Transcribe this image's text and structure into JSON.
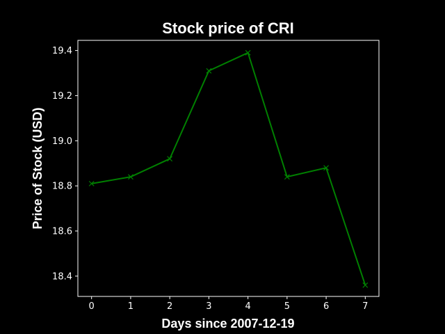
{
  "chart_data": {
    "type": "line",
    "title": "Stock price of CRI",
    "xlabel": "Days since 2007-12-19",
    "ylabel": "Price of Stock (USD)",
    "x": [
      0,
      1,
      2,
      3,
      4,
      5,
      6,
      7
    ],
    "series": [
      {
        "values": [
          18.81,
          18.84,
          18.92,
          19.31,
          19.39,
          18.84,
          18.88,
          18.36
        ],
        "color": "#008000",
        "marker": "x"
      }
    ],
    "xlim": [
      -0.35,
      7.35
    ],
    "ylim": [
      18.31,
      19.445
    ],
    "xticks": [
      0,
      1,
      2,
      3,
      4,
      5,
      6,
      7
    ],
    "yticks": [
      18.4,
      18.6,
      18.8,
      19.0,
      19.2,
      19.4
    ],
    "ytick_labels": [
      "18.4",
      "18.6",
      "18.8",
      "19.0",
      "19.2",
      "19.4"
    ],
    "grid": false,
    "background": "#000000",
    "foreground": "#ffffff"
  }
}
